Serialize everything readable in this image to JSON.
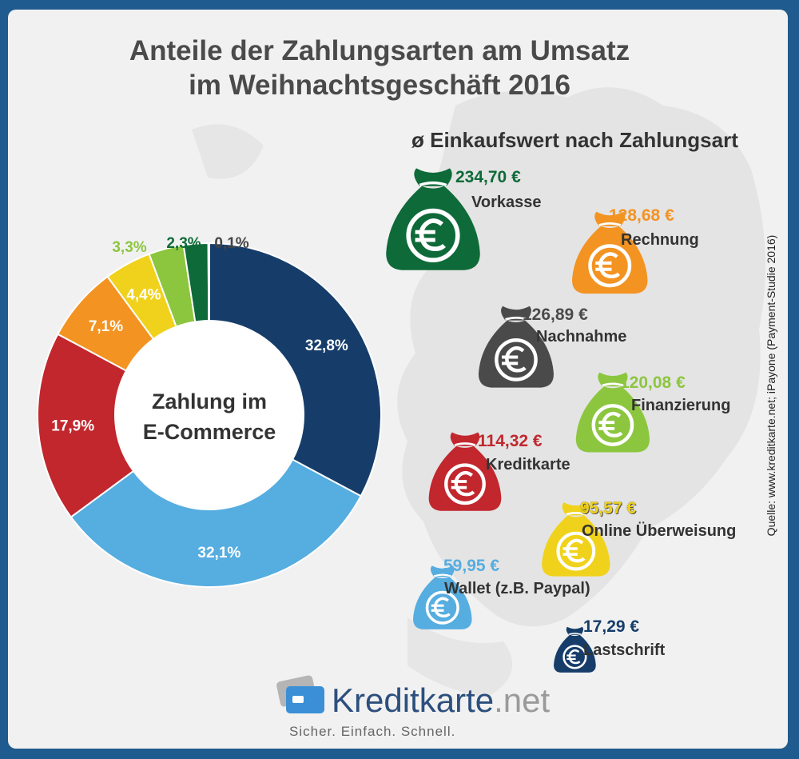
{
  "title_line1": "Anteile der Zahlungsarten am Umsatz",
  "title_line2": "im Weihnachtsgeschäft 2016",
  "subtitle": "ø Einkaufswert nach Zahlungsart",
  "source": "Quelle: www.kreditkarte.net; iPayone (Payment-Studie 2016)",
  "logo": {
    "name": "Kreditkarte",
    "suffix": ".net",
    "tagline": "Sicher. Einfach. Schnell."
  },
  "chart_data": [
    {
      "type": "pie",
      "center_label_line1": "Zahlung im",
      "center_label_line2": "E-Commerce",
      "slices": [
        {
          "label": "32,8%",
          "value": 32.8,
          "color": "#163d6a"
        },
        {
          "label": "32,1%",
          "value": 32.1,
          "color": "#56ade0"
        },
        {
          "label": "17,9%",
          "value": 17.9,
          "color": "#c1272d"
        },
        {
          "label": "7,1%",
          "value": 7.1,
          "color": "#f39322"
        },
        {
          "label": "4,4%",
          "value": 4.4,
          "color": "#f0d21c"
        },
        {
          "label": "3,3%",
          "value": 3.3,
          "color": "#8cc63f"
        },
        {
          "label": "2,3%",
          "value": 2.3,
          "color": "#0e6a38"
        },
        {
          "label": "0,1%",
          "value": 0.1,
          "color": "#555555"
        }
      ]
    },
    {
      "type": "bar",
      "title": "ø Einkaufswert nach Zahlungsart",
      "categories": [
        "Vorkasse",
        "Rechnung",
        "Nachnahme",
        "Finanzierung",
        "Kreditkarte",
        "Online Überweisung",
        "Wallet (z.B. Paypal)",
        "Lastschrift"
      ],
      "values": [
        234.7,
        128.68,
        126.89,
        120.08,
        114.32,
        95.57,
        59.95,
        17.29
      ],
      "value_labels": [
        "234,70 €",
        "128,68 €",
        "126,89 €",
        "120,08 €",
        "114,32 €",
        "95,57 €",
        "59,95 €",
        "17,29 €"
      ],
      "colors": [
        "#0e6a38",
        "#f39322",
        "#4a4a4a",
        "#8cc63f",
        "#c1272d",
        "#f0d21c",
        "#56ade0",
        "#163d6a"
      ],
      "icon": "money-bag-icon"
    }
  ]
}
